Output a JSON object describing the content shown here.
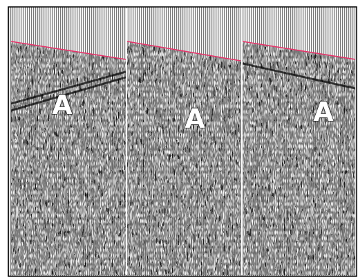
{
  "labels": [
    "A",
    "A",
    "A"
  ]
}
